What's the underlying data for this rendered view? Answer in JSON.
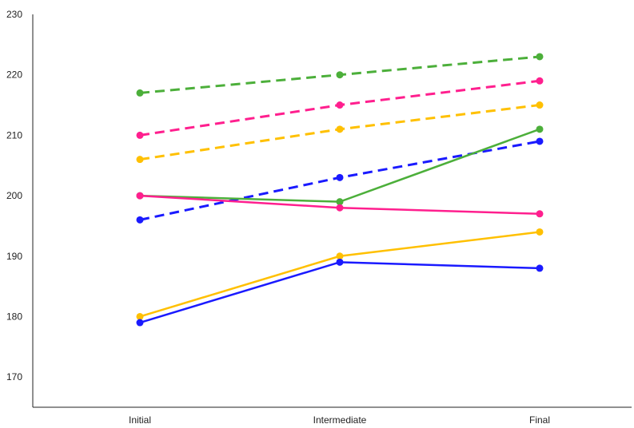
{
  "chart_data": {
    "type": "line",
    "categories": [
      "Initial",
      "Intermediate",
      "Final"
    ],
    "ylim": [
      165,
      230
    ],
    "yticks": [
      170,
      180,
      190,
      200,
      210,
      220,
      230
    ],
    "grid": false,
    "legend": "none",
    "series": [
      {
        "color": "#4caf3a",
        "style": "dashed",
        "values": [
          217,
          220,
          223
        ]
      },
      {
        "color": "#ff1f8e",
        "style": "dashed",
        "values": [
          210,
          215,
          219
        ]
      },
      {
        "color": "#ffc000",
        "style": "dashed",
        "values": [
          206,
          211,
          215
        ]
      },
      {
        "color": "#1a1aff",
        "style": "dashed",
        "values": [
          196,
          203,
          209
        ]
      },
      {
        "color": "#4caf3a",
        "style": "solid",
        "values": [
          200,
          199,
          211
        ]
      },
      {
        "color": "#ff1f8e",
        "style": "solid",
        "values": [
          200,
          198,
          197
        ]
      },
      {
        "color": "#ffc000",
        "style": "solid",
        "values": [
          180,
          190,
          194
        ]
      },
      {
        "color": "#1a1aff",
        "style": "solid",
        "values": [
          179,
          189,
          188
        ]
      }
    ]
  }
}
